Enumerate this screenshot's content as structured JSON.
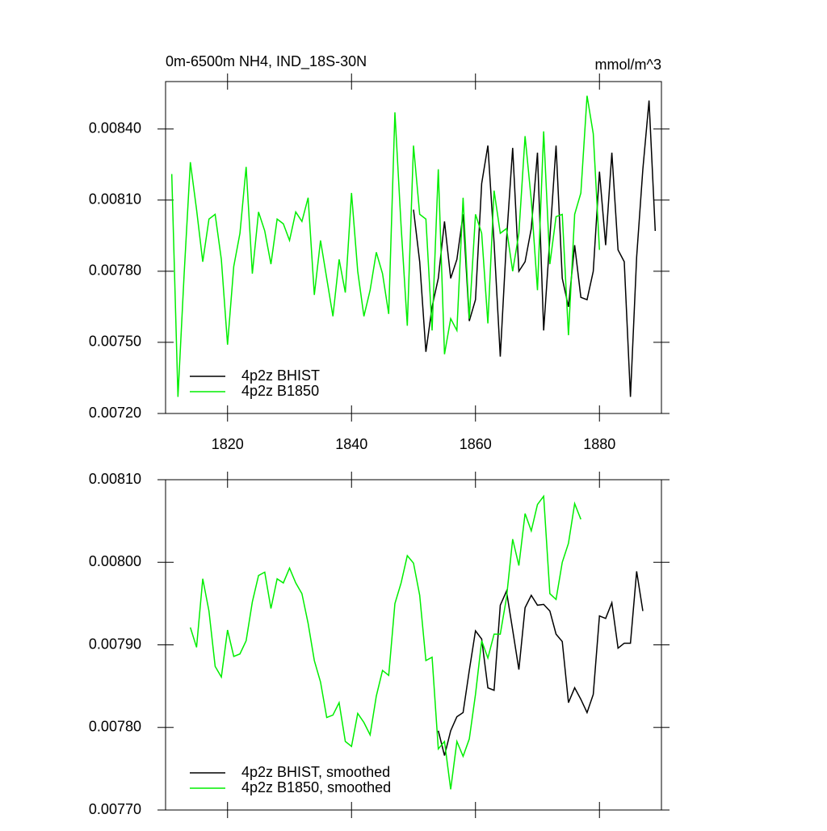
{
  "chart_data": [
    {
      "type": "line",
      "title": "0m-6500m NH4, IND_18S-30N",
      "units": "mmol/m^3",
      "xlim": [
        1810,
        1890
      ],
      "xticks": [
        1820,
        1840,
        1860,
        1880
      ],
      "show_xtick_labels": true,
      "ylim": [
        0.0072,
        0.0086
      ],
      "yticks": [
        {
          "value": 0.0072,
          "label": "0.00720"
        },
        {
          "value": 0.0075,
          "label": "0.00750"
        },
        {
          "value": 0.0078,
          "label": "0.00780"
        },
        {
          "value": 0.0081,
          "label": "0.00810"
        },
        {
          "value": 0.0084,
          "label": "0.00840"
        }
      ],
      "legend": "lower left",
      "series": [
        {
          "name": "4p2z BHIST",
          "color": "#000000",
          "x": [
            1850,
            1851,
            1852,
            1853,
            1854,
            1855,
            1856,
            1857,
            1858,
            1859,
            1860,
            1861,
            1862,
            1863,
            1864,
            1865,
            1866,
            1867,
            1868,
            1869,
            1870,
            1871,
            1872,
            1873,
            1874,
            1875,
            1876,
            1877,
            1878,
            1879,
            1880,
            1881,
            1882,
            1883,
            1884,
            1885,
            1886,
            1887,
            1888,
            1889
          ],
          "values": [
            0.00806,
            0.00784,
            0.00746,
            0.00765,
            0.00777,
            0.00801,
            0.00777,
            0.00785,
            0.00804,
            0.00759,
            0.00768,
            0.00817,
            0.00833,
            0.00792,
            0.00744,
            0.00793,
            0.00832,
            0.0078,
            0.00784,
            0.00798,
            0.0083,
            0.00755,
            0.00794,
            0.00833,
            0.00777,
            0.00765,
            0.00791,
            0.00769,
            0.00768,
            0.0078,
            0.00822,
            0.00791,
            0.0083,
            0.00789,
            0.00784,
            0.00727,
            0.00786,
            0.00823,
            0.00852,
            0.00797
          ]
        },
        {
          "name": "4p2z B1850",
          "color": "#00ee00",
          "x": [
            1811,
            1812,
            1813,
            1814,
            1815,
            1816,
            1817,
            1818,
            1819,
            1820,
            1821,
            1822,
            1823,
            1824,
            1825,
            1826,
            1827,
            1828,
            1829,
            1830,
            1831,
            1832,
            1833,
            1834,
            1835,
            1836,
            1837,
            1838,
            1839,
            1840,
            1841,
            1842,
            1843,
            1844,
            1845,
            1846,
            1847,
            1848,
            1849,
            1850,
            1851,
            1852,
            1853,
            1854,
            1855,
            1856,
            1857,
            1858,
            1859,
            1860,
            1861,
            1862,
            1863,
            1864,
            1865,
            1866,
            1867,
            1868,
            1869,
            1870,
            1871,
            1872,
            1873,
            1874,
            1875,
            1876,
            1877,
            1878,
            1879,
            1880
          ],
          "values": [
            0.00821,
            0.00727,
            0.00779,
            0.00826,
            0.00806,
            0.00784,
            0.00802,
            0.00804,
            0.00785,
            0.00749,
            0.00782,
            0.00796,
            0.00824,
            0.00779,
            0.00805,
            0.00797,
            0.00783,
            0.00802,
            0.008,
            0.00793,
            0.00805,
            0.00801,
            0.00811,
            0.0077,
            0.00793,
            0.00777,
            0.00761,
            0.00785,
            0.00771,
            0.00813,
            0.0078,
            0.00761,
            0.00772,
            0.00788,
            0.00779,
            0.00762,
            0.00847,
            0.00799,
            0.00757,
            0.00833,
            0.00804,
            0.00802,
            0.00755,
            0.00823,
            0.00745,
            0.0076,
            0.00755,
            0.00811,
            0.0076,
            0.00804,
            0.00796,
            0.00758,
            0.00814,
            0.00796,
            0.00798,
            0.0078,
            0.00796,
            0.00837,
            0.0081,
            0.00772,
            0.00839,
            0.00783,
            0.00803,
            0.00804,
            0.00753,
            0.00804,
            0.00813,
            0.00854,
            0.00838,
            0.00789
          ]
        }
      ]
    },
    {
      "type": "line",
      "xlim": [
        1810,
        1890
      ],
      "xticks": [
        1820,
        1840,
        1860,
        1880
      ],
      "show_xtick_labels": false,
      "ylim": [
        0.0077,
        0.0081
      ],
      "yticks": [
        {
          "value": 0.0077,
          "label": "0.00770"
        },
        {
          "value": 0.0078,
          "label": "0.00780"
        },
        {
          "value": 0.0079,
          "label": "0.00790"
        },
        {
          "value": 0.008,
          "label": "0.00800"
        },
        {
          "value": 0.0081,
          "label": "0.00810"
        }
      ],
      "legend": "lower left",
      "series": [
        {
          "name": "4p2z BHIST, smoothed",
          "color": "#000000",
          "x": [
            1854,
            1855,
            1856,
            1857,
            1858,
            1859,
            1860,
            1861,
            1862,
            1863,
            1864,
            1865,
            1866,
            1867,
            1868,
            1869,
            1870,
            1871,
            1872,
            1873,
            1874,
            1875,
            1876,
            1877,
            1878,
            1879,
            1880,
            1881,
            1882,
            1883,
            1884,
            1885,
            1886,
            1887
          ],
          "values": [
            0.007796,
            0.007766,
            0.007796,
            0.007813,
            0.007818,
            0.007869,
            0.007917,
            0.007907,
            0.007848,
            0.007845,
            0.007948,
            0.007965,
            0.007918,
            0.00787,
            0.007945,
            0.00796,
            0.007948,
            0.007949,
            0.007941,
            0.007913,
            0.007904,
            0.00783,
            0.007848,
            0.007834,
            0.007818,
            0.00784,
            0.007935,
            0.007932,
            0.007951,
            0.007896,
            0.007902,
            0.007902,
            0.007989,
            0.007941
          ]
        },
        {
          "name": "4p2z B1850, smoothed",
          "color": "#00ee00",
          "x": [
            1814,
            1815,
            1816,
            1817,
            1818,
            1819,
            1820,
            1821,
            1822,
            1823,
            1824,
            1825,
            1826,
            1827,
            1828,
            1829,
            1830,
            1831,
            1832,
            1833,
            1834,
            1835,
            1836,
            1837,
            1838,
            1839,
            1840,
            1841,
            1842,
            1843,
            1844,
            1845,
            1846,
            1847,
            1848,
            1849,
            1850,
            1851,
            1852,
            1853,
            1854,
            1855,
            1856,
            1857,
            1858,
            1859,
            1860,
            1861,
            1862,
            1863,
            1864,
            1865,
            1866,
            1867,
            1868,
            1869,
            1870,
            1871,
            1872,
            1873,
            1874,
            1875,
            1876,
            1877
          ],
          "values": [
            0.007921,
            0.007897,
            0.00798,
            0.007941,
            0.007874,
            0.007861,
            0.007918,
            0.007886,
            0.007889,
            0.007905,
            0.007952,
            0.007984,
            0.007988,
            0.007944,
            0.00798,
            0.007975,
            0.007993,
            0.007975,
            0.007962,
            0.007926,
            0.007881,
            0.007855,
            0.007812,
            0.007815,
            0.00783,
            0.007783,
            0.007777,
            0.007817,
            0.007806,
            0.007791,
            0.007838,
            0.007869,
            0.007863,
            0.00795,
            0.007975,
            0.008008,
            0.007999,
            0.00796,
            0.007881,
            0.007885,
            0.007774,
            0.007783,
            0.007725,
            0.007783,
            0.007765,
            0.007786,
            0.00784,
            0.007905,
            0.007884,
            0.007913,
            0.007913,
            0.007957,
            0.008028,
            0.007996,
            0.008059,
            0.008038,
            0.00807,
            0.00808,
            0.007962,
            0.007955,
            0.008,
            0.008023,
            0.008071,
            0.008052
          ]
        }
      ]
    }
  ]
}
